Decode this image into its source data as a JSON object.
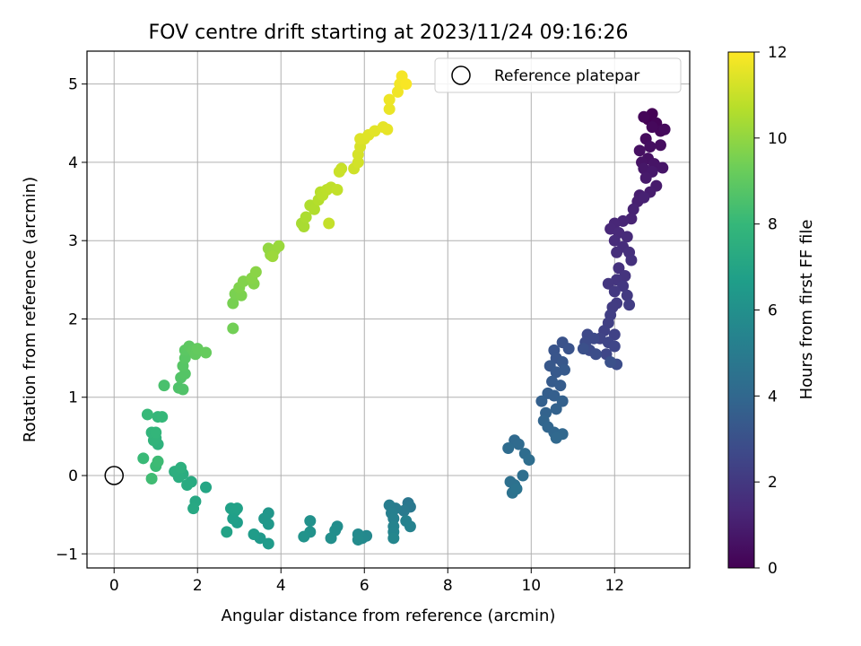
{
  "chart_data": {
    "type": "scatter",
    "title": "FOV centre drift starting at 2023/11/24 09:16:26",
    "xlabel": "Angular distance from reference (arcmin)",
    "ylabel": "Rotation from reference (arcmin)",
    "xlim": [
      -0.65,
      13.8
    ],
    "ylim": [
      -1.18,
      5.42
    ],
    "xticks": [
      0,
      2,
      4,
      6,
      8,
      10,
      12
    ],
    "yticks": [
      -1,
      0,
      1,
      2,
      3,
      4,
      5
    ],
    "grid": true,
    "legend": {
      "position": "top-right",
      "entries": [
        "Reference platepar"
      ]
    },
    "reference": {
      "x": 0,
      "y": 0
    },
    "colorbar": {
      "label": "Hours from first FF file",
      "range": [
        0,
        12
      ],
      "ticks": [
        0,
        2,
        4,
        6,
        8,
        10,
        12
      ],
      "colormap": "viridis",
      "stops": [
        "#440154",
        "#482878",
        "#3e4989",
        "#31688e",
        "#26828e",
        "#1f9e89",
        "#35b779",
        "#6ece58",
        "#b5de2b",
        "#fde725"
      ]
    },
    "series": [
      {
        "points": [
          [
            12.8,
            4.55,
            0.0
          ],
          [
            12.9,
            4.62,
            0.05
          ],
          [
            13.0,
            4.5,
            0.1
          ],
          [
            12.7,
            4.58,
            0.15
          ],
          [
            13.1,
            4.4,
            0.2
          ],
          [
            12.9,
            4.45,
            0.25
          ],
          [
            13.2,
            4.42,
            0.3
          ],
          [
            12.75,
            4.3,
            0.35
          ],
          [
            13.1,
            4.22,
            0.4
          ],
          [
            12.85,
            4.2,
            0.45
          ],
          [
            12.6,
            4.15,
            0.5
          ],
          [
            12.8,
            4.05,
            0.55
          ],
          [
            12.65,
            4.0,
            0.6
          ],
          [
            12.95,
            3.98,
            0.65
          ],
          [
            13.15,
            3.93,
            0.7
          ],
          [
            12.7,
            3.92,
            0.75
          ],
          [
            12.9,
            3.88,
            0.8
          ],
          [
            12.75,
            3.8,
            0.85
          ],
          [
            13.0,
            3.7,
            0.9
          ],
          [
            12.85,
            3.62,
            0.95
          ],
          [
            12.6,
            3.58,
            1.0
          ],
          [
            12.55,
            3.5,
            1.05
          ],
          [
            12.7,
            3.55,
            1.1
          ],
          [
            12.45,
            3.4,
            1.15
          ],
          [
            12.4,
            3.28,
            1.2
          ],
          [
            12.2,
            3.25,
            1.25
          ],
          [
            12.0,
            3.22,
            1.3
          ],
          [
            11.9,
            3.15,
            1.35
          ],
          [
            12.1,
            3.1,
            1.4
          ],
          [
            12.3,
            3.05,
            1.45
          ],
          [
            12.0,
            3.0,
            1.5
          ],
          [
            12.2,
            2.92,
            1.55
          ],
          [
            12.05,
            2.85,
            1.6
          ],
          [
            12.35,
            2.85,
            1.65
          ],
          [
            12.4,
            2.75,
            1.7
          ],
          [
            12.1,
            2.65,
            1.75
          ],
          [
            12.25,
            2.55,
            1.8
          ],
          [
            12.05,
            2.5,
            1.85
          ],
          [
            11.85,
            2.45,
            1.9
          ],
          [
            12.2,
            2.42,
            1.95
          ],
          [
            12.0,
            2.35,
            2.0
          ],
          [
            12.3,
            2.3,
            2.05
          ],
          [
            12.05,
            2.2,
            2.1
          ],
          [
            11.95,
            2.15,
            2.15
          ],
          [
            12.35,
            2.18,
            2.2
          ],
          [
            11.9,
            2.05,
            2.25
          ],
          [
            11.85,
            1.95,
            2.3
          ],
          [
            11.75,
            1.85,
            2.35
          ],
          [
            12.0,
            1.8,
            2.4
          ],
          [
            11.65,
            1.75,
            2.45
          ],
          [
            11.85,
            1.7,
            2.5
          ],
          [
            12.0,
            1.65,
            2.55
          ],
          [
            11.8,
            1.55,
            2.6
          ],
          [
            11.35,
            1.8,
            2.65
          ],
          [
            11.5,
            1.75,
            2.7
          ],
          [
            11.3,
            1.7,
            2.75
          ],
          [
            11.4,
            1.6,
            2.8
          ],
          [
            12.05,
            1.42,
            2.85
          ],
          [
            11.55,
            1.55,
            2.9
          ],
          [
            11.25,
            1.62,
            2.95
          ],
          [
            11.9,
            1.45,
            3.0
          ],
          [
            10.75,
            1.7,
            3.05
          ],
          [
            10.9,
            1.62,
            3.1
          ],
          [
            10.55,
            1.6,
            3.15
          ],
          [
            10.6,
            1.5,
            3.2
          ],
          [
            10.75,
            1.45,
            3.25
          ],
          [
            10.45,
            1.4,
            3.3
          ],
          [
            10.6,
            1.32,
            3.35
          ],
          [
            10.8,
            1.35,
            3.4
          ],
          [
            10.5,
            1.2,
            3.45
          ],
          [
            10.7,
            1.15,
            3.5
          ],
          [
            10.4,
            1.05,
            3.55
          ],
          [
            10.55,
            1.02,
            3.6
          ],
          [
            10.25,
            0.95,
            3.65
          ],
          [
            10.75,
            0.95,
            3.7
          ],
          [
            10.6,
            0.85,
            3.75
          ],
          [
            10.35,
            0.8,
            3.8
          ],
          [
            10.3,
            0.7,
            3.85
          ],
          [
            10.4,
            0.62,
            3.9
          ],
          [
            10.55,
            0.55,
            3.95
          ],
          [
            10.75,
            0.53,
            4.0
          ],
          [
            10.6,
            0.48,
            4.05
          ],
          [
            9.6,
            0.45,
            4.1
          ],
          [
            9.7,
            0.4,
            4.15
          ],
          [
            9.45,
            0.35,
            4.2
          ],
          [
            9.85,
            0.28,
            4.25
          ],
          [
            9.95,
            0.2,
            4.3
          ],
          [
            9.8,
            0.0,
            4.35
          ],
          [
            9.5,
            -0.08,
            4.4
          ],
          [
            9.6,
            -0.12,
            4.45
          ],
          [
            9.55,
            -0.22,
            4.5
          ],
          [
            9.65,
            -0.17,
            4.55
          ],
          [
            7.05,
            -0.35,
            4.7
          ],
          [
            7.1,
            -0.4,
            4.8
          ],
          [
            6.95,
            -0.45,
            4.9
          ],
          [
            6.75,
            -0.42,
            5.0
          ],
          [
            6.6,
            -0.38,
            5.1
          ],
          [
            6.65,
            -0.48,
            5.2
          ],
          [
            6.7,
            -0.55,
            5.25
          ],
          [
            7.0,
            -0.58,
            5.3
          ],
          [
            7.1,
            -0.65,
            5.35
          ],
          [
            6.7,
            -0.65,
            5.4
          ],
          [
            6.7,
            -0.72,
            5.45
          ],
          [
            6.7,
            -0.8,
            5.5
          ],
          [
            6.05,
            -0.77,
            5.6
          ],
          [
            5.95,
            -0.8,
            5.65
          ],
          [
            5.85,
            -0.75,
            5.7
          ],
          [
            5.85,
            -0.82,
            5.75
          ],
          [
            5.35,
            -0.65,
            5.85
          ],
          [
            5.3,
            -0.7,
            5.9
          ],
          [
            5.2,
            -0.8,
            5.95
          ],
          [
            4.7,
            -0.58,
            6.05
          ],
          [
            4.7,
            -0.72,
            6.1
          ],
          [
            4.55,
            -0.78,
            6.15
          ],
          [
            3.7,
            -0.48,
            6.3
          ],
          [
            3.6,
            -0.55,
            6.35
          ],
          [
            3.7,
            -0.62,
            6.4
          ],
          [
            3.5,
            -0.8,
            6.45
          ],
          [
            3.7,
            -0.87,
            6.5
          ],
          [
            3.35,
            -0.75,
            6.55
          ],
          [
            2.95,
            -0.6,
            6.65
          ],
          [
            2.85,
            -0.55,
            6.7
          ],
          [
            2.9,
            -0.45,
            6.75
          ],
          [
            2.8,
            -0.42,
            6.8
          ],
          [
            2.95,
            -0.42,
            6.85
          ],
          [
            2.7,
            -0.72,
            6.9
          ],
          [
            2.2,
            -0.15,
            7.05
          ],
          [
            1.95,
            -0.33,
            7.15
          ],
          [
            1.9,
            -0.42,
            7.2
          ],
          [
            1.85,
            -0.08,
            7.3
          ],
          [
            1.75,
            -0.12,
            7.35
          ],
          [
            1.65,
            0.02,
            7.4
          ],
          [
            1.55,
            -0.02,
            7.45
          ],
          [
            1.45,
            0.05,
            7.5
          ],
          [
            1.6,
            0.1,
            7.55
          ],
          [
            1.05,
            0.4,
            7.7
          ],
          [
            1.0,
            0.48,
            7.75
          ],
          [
            0.95,
            0.45,
            7.8
          ],
          [
            0.9,
            0.55,
            7.85
          ],
          [
            1.0,
            0.55,
            7.9
          ],
          [
            1.05,
            0.75,
            7.95
          ],
          [
            1.15,
            0.75,
            8.0
          ],
          [
            0.8,
            0.78,
            8.05
          ],
          [
            0.7,
            0.22,
            8.1
          ],
          [
            1.0,
            0.12,
            8.15
          ],
          [
            1.05,
            0.18,
            8.2
          ],
          [
            0.9,
            -0.04,
            8.25
          ],
          [
            1.2,
            1.15,
            8.5
          ],
          [
            1.55,
            1.12,
            8.6
          ],
          [
            1.65,
            1.1,
            8.65
          ],
          [
            1.6,
            1.25,
            8.7
          ],
          [
            1.7,
            1.3,
            8.75
          ],
          [
            1.65,
            1.4,
            8.8
          ],
          [
            1.7,
            1.5,
            8.85
          ],
          [
            1.7,
            1.6,
            8.9
          ],
          [
            1.8,
            1.65,
            8.95
          ],
          [
            1.9,
            1.6,
            9.0
          ],
          [
            1.95,
            1.55,
            9.05
          ],
          [
            2.0,
            1.62,
            9.1
          ],
          [
            2.2,
            1.57,
            9.15
          ],
          [
            2.85,
            1.88,
            9.4
          ],
          [
            2.85,
            2.2,
            9.5
          ],
          [
            2.9,
            2.32,
            9.55
          ],
          [
            3.05,
            2.3,
            9.6
          ],
          [
            3.0,
            2.4,
            9.65
          ],
          [
            3.1,
            2.48,
            9.7
          ],
          [
            3.35,
            2.45,
            9.75
          ],
          [
            3.3,
            2.52,
            9.8
          ],
          [
            3.4,
            2.6,
            9.85
          ],
          [
            3.7,
            2.9,
            10.0
          ],
          [
            3.75,
            2.82,
            10.05
          ],
          [
            3.85,
            2.88,
            10.1
          ],
          [
            3.95,
            2.93,
            10.15
          ],
          [
            3.8,
            2.8,
            10.2
          ],
          [
            4.5,
            3.22,
            10.4
          ],
          [
            4.55,
            3.18,
            10.45
          ],
          [
            4.6,
            3.3,
            10.5
          ],
          [
            4.7,
            3.45,
            10.55
          ],
          [
            4.8,
            3.4,
            10.6
          ],
          [
            4.9,
            3.52,
            10.65
          ],
          [
            4.95,
            3.62,
            10.7
          ],
          [
            5.0,
            3.58,
            10.75
          ],
          [
            5.1,
            3.65,
            10.8
          ],
          [
            5.2,
            3.68,
            10.85
          ],
          [
            5.35,
            3.65,
            10.9
          ],
          [
            5.15,
            3.22,
            10.95
          ],
          [
            5.45,
            3.92,
            11.0
          ],
          [
            5.4,
            3.88,
            11.05
          ],
          [
            5.75,
            3.92,
            11.15
          ],
          [
            5.85,
            4.0,
            11.2
          ],
          [
            5.85,
            4.1,
            11.25
          ],
          [
            5.9,
            4.2,
            11.3
          ],
          [
            6.0,
            4.3,
            11.35
          ],
          [
            5.9,
            4.3,
            11.4
          ],
          [
            6.1,
            4.35,
            11.45
          ],
          [
            6.25,
            4.4,
            11.5
          ],
          [
            6.45,
            4.45,
            11.55
          ],
          [
            6.55,
            4.42,
            11.6
          ],
          [
            6.6,
            4.68,
            11.65
          ],
          [
            6.6,
            4.8,
            11.7
          ],
          [
            6.8,
            4.9,
            11.75
          ],
          [
            6.85,
            5.0,
            11.8
          ],
          [
            6.9,
            5.1,
            11.85
          ],
          [
            7.0,
            5.0,
            11.9
          ]
        ]
      }
    ]
  }
}
